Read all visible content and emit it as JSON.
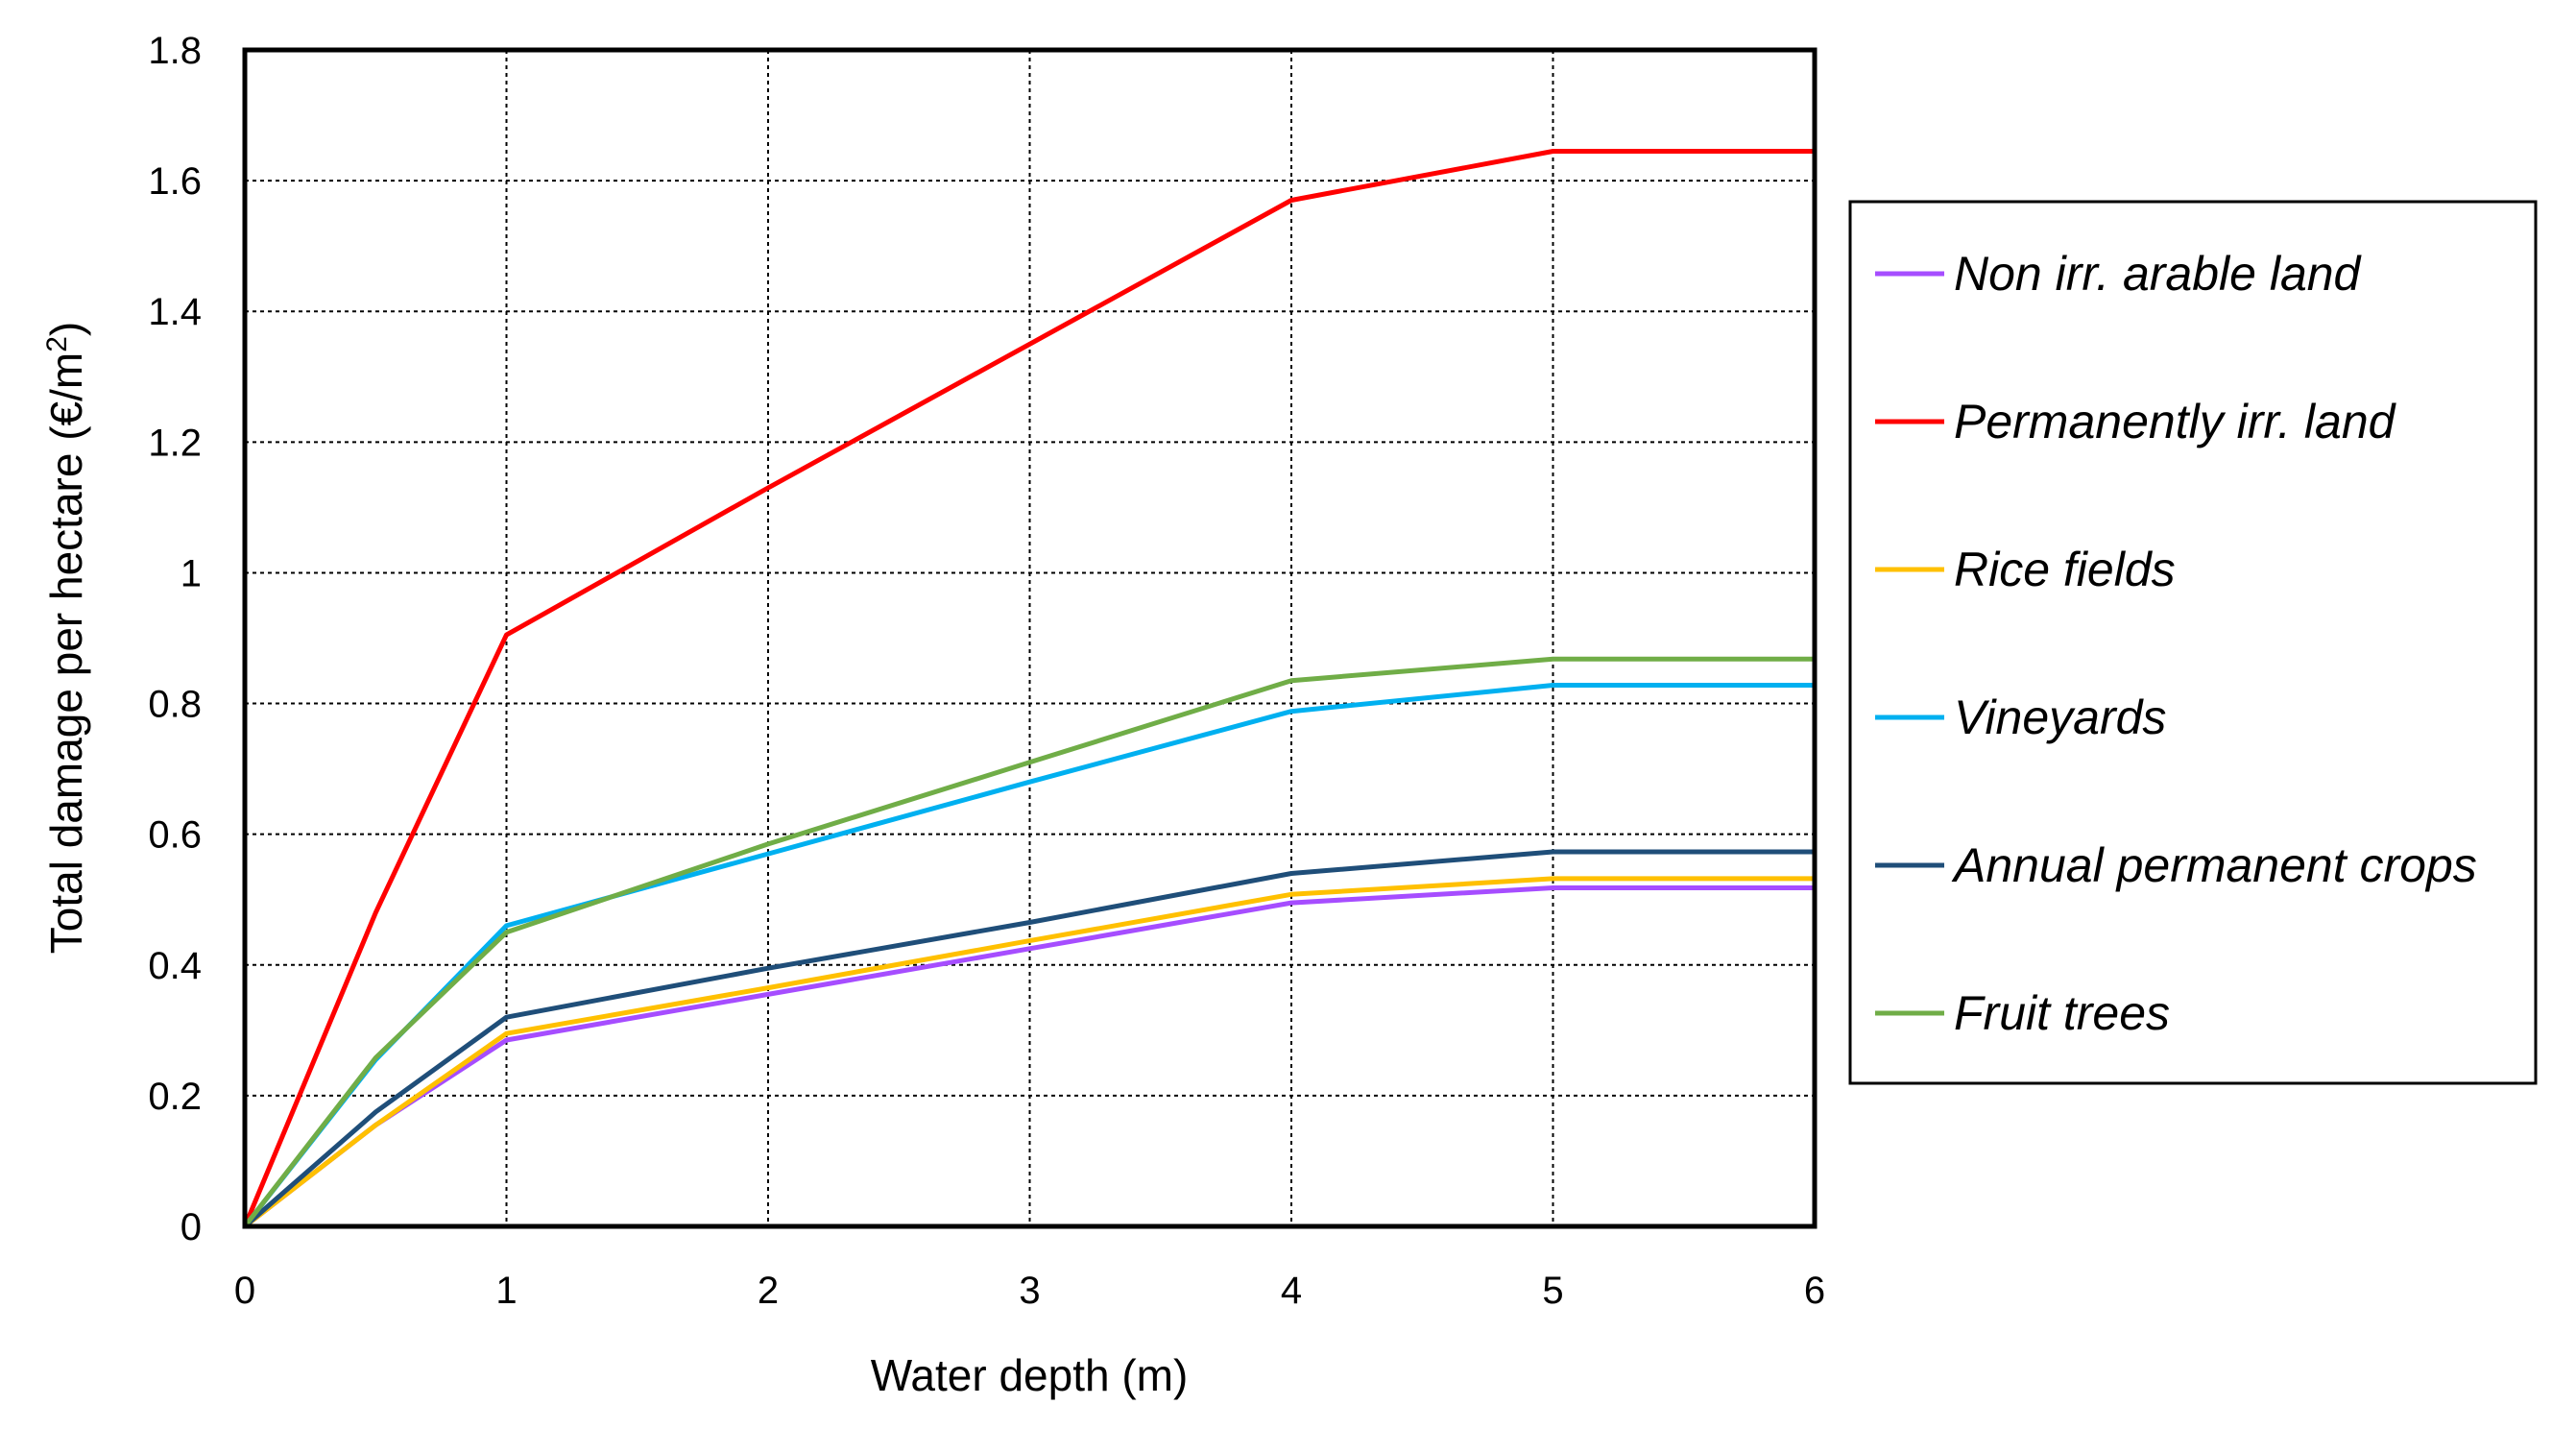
{
  "chart_data": {
    "type": "line",
    "title": "",
    "xlabel": "Water depth (m)",
    "ylabel": "Total damage per hectare (€/m²)",
    "ylabel_main": "Total damage per hectare (€/m",
    "ylabel_sup": "2",
    "ylabel_end": ")",
    "xlim": [
      0,
      6
    ],
    "ylim": [
      0,
      1.8
    ],
    "x_ticks": [
      "0",
      "1",
      "2",
      "3",
      "4",
      "5",
      "6"
    ],
    "y_ticks": [
      "0",
      "0.2",
      "0.4",
      "0.6",
      "0.8",
      "1",
      "1.2",
      "1.4",
      "1.6",
      "1.8"
    ],
    "grid": true,
    "legend_position": "right",
    "series": [
      {
        "name": "Non irr. arable land",
        "color": "#a64dff",
        "x": [
          0,
          0.5,
          1,
          2,
          3,
          4,
          5,
          6
        ],
        "y": [
          0,
          0.155,
          0.285,
          0.355,
          0.425,
          0.495,
          0.518,
          0.518
        ]
      },
      {
        "name": "Permanently irr. land",
        "color": "#ff0000",
        "x": [
          0,
          0.5,
          1,
          2,
          3,
          4,
          5,
          6
        ],
        "y": [
          0,
          0.48,
          0.905,
          1.13,
          1.35,
          1.57,
          1.645,
          1.645
        ]
      },
      {
        "name": "Rice fields",
        "color": "#ffc000",
        "x": [
          0,
          0.5,
          1,
          2,
          3,
          4,
          5,
          6
        ],
        "y": [
          0,
          0.155,
          0.295,
          0.365,
          0.437,
          0.508,
          0.532,
          0.532
        ]
      },
      {
        "name": "Vineyards",
        "color": "#00b0f0",
        "x": [
          0,
          0.5,
          1,
          2,
          3,
          4,
          5,
          6
        ],
        "y": [
          0,
          0.255,
          0.46,
          0.57,
          0.68,
          0.788,
          0.828,
          0.828
        ]
      },
      {
        "name": "Annual permanent crops",
        "color": "#1f4e79",
        "x": [
          0,
          0.5,
          1,
          2,
          3,
          4,
          5,
          6
        ],
        "y": [
          0,
          0.175,
          0.32,
          0.395,
          0.465,
          0.54,
          0.573,
          0.573
        ]
      },
      {
        "name": "Fruit trees",
        "color": "#70ad47",
        "x": [
          0,
          0.5,
          1,
          2,
          3,
          4,
          5,
          6
        ],
        "y": [
          0,
          0.258,
          0.45,
          0.585,
          0.71,
          0.835,
          0.868,
          0.868
        ]
      }
    ]
  }
}
